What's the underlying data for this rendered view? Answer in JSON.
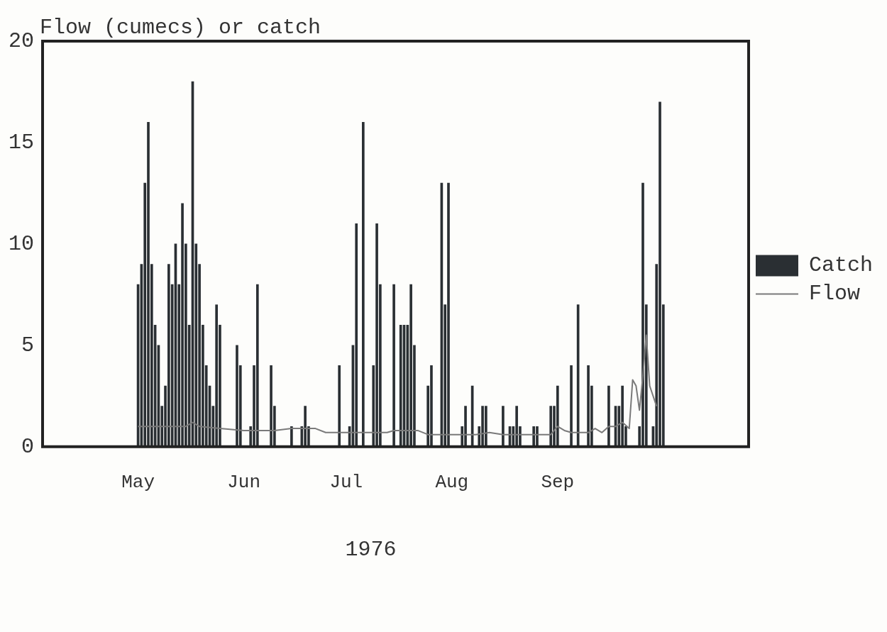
{
  "chart_data": {
    "type": "bar",
    "ylabel": "Flow (cumecs) or catch",
    "xlabel": "1976",
    "x": [
      "1976-05-01",
      "1976-05-02",
      "1976-05-03",
      "1976-05-04",
      "1976-05-05",
      "1976-05-06",
      "1976-05-07",
      "1976-05-08",
      "1976-05-09",
      "1976-05-10",
      "1976-05-11",
      "1976-05-12",
      "1976-05-13",
      "1976-05-14",
      "1976-05-15",
      "1976-05-16",
      "1976-05-17",
      "1976-05-18",
      "1976-05-19",
      "1976-05-20",
      "1976-05-21",
      "1976-05-22",
      "1976-05-23",
      "1976-05-24",
      "1976-05-25",
      "1976-05-30",
      "1976-05-31",
      "1976-06-03",
      "1976-06-04",
      "1976-06-05",
      "1976-06-09",
      "1976-06-10",
      "1976-06-15",
      "1976-06-18",
      "1976-06-19",
      "1976-06-20",
      "1976-06-29",
      "1976-07-02",
      "1976-07-03",
      "1976-07-04",
      "1976-07-06",
      "1976-07-09",
      "1976-07-10",
      "1976-07-11",
      "1976-07-15",
      "1976-07-17",
      "1976-07-18",
      "1976-07-19",
      "1976-07-20",
      "1976-07-21",
      "1976-07-25",
      "1976-07-26",
      "1976-07-29",
      "1976-07-30",
      "1976-07-31",
      "1976-08-04",
      "1976-08-05",
      "1976-08-07",
      "1976-08-09",
      "1976-08-10",
      "1976-08-11",
      "1976-08-16",
      "1976-08-18",
      "1976-08-19",
      "1976-08-20",
      "1976-08-21",
      "1976-08-25",
      "1976-08-26",
      "1976-08-30",
      "1976-08-31",
      "1976-09-01",
      "1976-09-05",
      "1976-09-07",
      "1976-09-10",
      "1976-09-11",
      "1976-09-16",
      "1976-09-18",
      "1976-09-19",
      "1976-09-20",
      "1976-09-21",
      "1976-09-25",
      "1976-09-26",
      "1976-09-27",
      "1976-09-29",
      "1976-09-30",
      "1976-10-01",
      "1976-10-02"
    ],
    "series": [
      {
        "name": "Catch",
        "color": "#2a2f33",
        "values": [
          8,
          9,
          13,
          16,
          9,
          6,
          5,
          2,
          3,
          9,
          8,
          10,
          8,
          12,
          10,
          6,
          18,
          10,
          9,
          6,
          4,
          3,
          2,
          7,
          6,
          5,
          4,
          1,
          4,
          8,
          4,
          2,
          1,
          1,
          2,
          1,
          4,
          1,
          5,
          11,
          16,
          4,
          11,
          8,
          8,
          6,
          6,
          6,
          8,
          5,
          3,
          4,
          13,
          7,
          13,
          1,
          2,
          3,
          1,
          2,
          2,
          2,
          1,
          1,
          2,
          1,
          1,
          1,
          2,
          2,
          3,
          4,
          7,
          4,
          3,
          3,
          2,
          2,
          3,
          1,
          1,
          13,
          7,
          1,
          9,
          17,
          7
        ]
      },
      {
        "name": "Flow",
        "type": "line",
        "color": "#7a7a7a",
        "x": [
          "1976-05-01",
          "1976-05-15",
          "1976-05-17",
          "1976-05-19",
          "1976-05-25",
          "1976-06-01",
          "1976-06-10",
          "1976-06-15",
          "1976-06-22",
          "1976-06-25",
          "1976-07-05",
          "1976-07-13",
          "1976-07-15",
          "1976-07-22",
          "1976-07-25",
          "1976-08-08",
          "1976-08-12",
          "1976-08-16",
          "1976-08-24",
          "1976-08-30",
          "1976-09-01",
          "1976-09-03",
          "1976-09-05",
          "1976-09-10",
          "1976-09-12",
          "1976-09-14",
          "1976-09-16",
          "1976-09-18",
          "1976-09-20",
          "1976-09-22",
          "1976-09-23",
          "1976-09-24",
          "1976-09-25",
          "1976-09-26",
          "1976-09-27",
          "1976-09-28",
          "1976-09-30"
        ],
        "values": [
          1.0,
          1.0,
          1.2,
          1.0,
          0.9,
          0.8,
          0.8,
          0.9,
          0.9,
          0.7,
          0.7,
          0.7,
          0.8,
          0.8,
          0.6,
          0.6,
          0.7,
          0.6,
          0.6,
          0.6,
          1.0,
          0.8,
          0.7,
          0.7,
          0.9,
          0.7,
          1.0,
          1.0,
          1.2,
          0.9,
          3.3,
          3.0,
          1.8,
          3.5,
          5.5,
          3.0,
          2.0
        ]
      }
    ],
    "xlim": [
      "1976-04-03",
      "1976-10-27"
    ],
    "xticks": [
      {
        "value": "1976-05-01",
        "label": "May"
      },
      {
        "value": "1976-06-01",
        "label": "Jun"
      },
      {
        "value": "1976-07-01",
        "label": "Jul"
      },
      {
        "value": "1976-08-01",
        "label": "Aug"
      },
      {
        "value": "1976-09-01",
        "label": "Sep"
      }
    ],
    "ylim": [
      0,
      20
    ],
    "yticks": [
      0,
      5,
      10,
      15,
      20
    ],
    "grid": false,
    "legend": "right",
    "marker": "none",
    "line_style": "solid"
  }
}
